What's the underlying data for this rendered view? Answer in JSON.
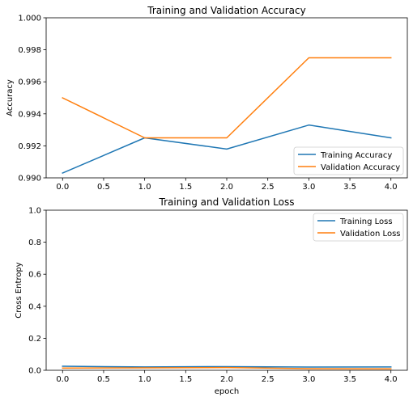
{
  "chart_data": [
    {
      "type": "line",
      "title": "Training and Validation Accuracy",
      "xlabel": "",
      "ylabel": "Accuracy",
      "x": [
        0,
        1,
        2,
        3,
        4
      ],
      "xlim": [
        -0.2,
        4.2
      ],
      "ylim": [
        0.99,
        1.0
      ],
      "xticks": [
        0,
        0.5,
        1,
        1.5,
        2,
        2.5,
        3,
        3.5,
        4
      ],
      "xtick_labels": [
        "0.0",
        "0.5",
        "1.0",
        "1.5",
        "2.0",
        "2.5",
        "3.0",
        "3.5",
        "4.0"
      ],
      "yticks": [
        0.99,
        0.992,
        0.994,
        0.996,
        0.998,
        1.0
      ],
      "ytick_labels": [
        "0.990",
        "0.992",
        "0.994",
        "0.996",
        "0.998",
        "1.000"
      ],
      "legend_position": "lower-right",
      "grid": false,
      "series": [
        {
          "name": "Training Accuracy",
          "color": "#1f77b4",
          "values": [
            0.9903,
            0.9925,
            0.9918,
            0.9933,
            0.9925
          ]
        },
        {
          "name": "Validation Accuracy",
          "color": "#ff7f0e",
          "values": [
            0.995,
            0.9925,
            0.9925,
            0.9975,
            0.9975
          ]
        }
      ]
    },
    {
      "type": "line",
      "title": "Training and Validation Loss",
      "xlabel": "epoch",
      "ylabel": "Cross Entropy",
      "x": [
        0,
        1,
        2,
        3,
        4
      ],
      "xlim": [
        -0.2,
        4.2
      ],
      "ylim": [
        0.0,
        1.0
      ],
      "xticks": [
        0,
        0.5,
        1,
        1.5,
        2,
        2.5,
        3,
        3.5,
        4
      ],
      "xtick_labels": [
        "0.0",
        "0.5",
        "1.0",
        "1.5",
        "2.0",
        "2.5",
        "3.0",
        "3.5",
        "4.0"
      ],
      "yticks": [
        0.0,
        0.2,
        0.4,
        0.6,
        0.8,
        1.0
      ],
      "ytick_labels": [
        "0.0",
        "0.2",
        "0.4",
        "0.6",
        "0.8",
        "1.0"
      ],
      "legend_position": "upper-right",
      "grid": false,
      "series": [
        {
          "name": "Training Loss",
          "color": "#1f77b4",
          "values": [
            0.025,
            0.021,
            0.023,
            0.02,
            0.021
          ]
        },
        {
          "name": "Validation Loss",
          "color": "#ff7f0e",
          "values": [
            0.014,
            0.015,
            0.017,
            0.01,
            0.009
          ]
        }
      ]
    }
  ]
}
